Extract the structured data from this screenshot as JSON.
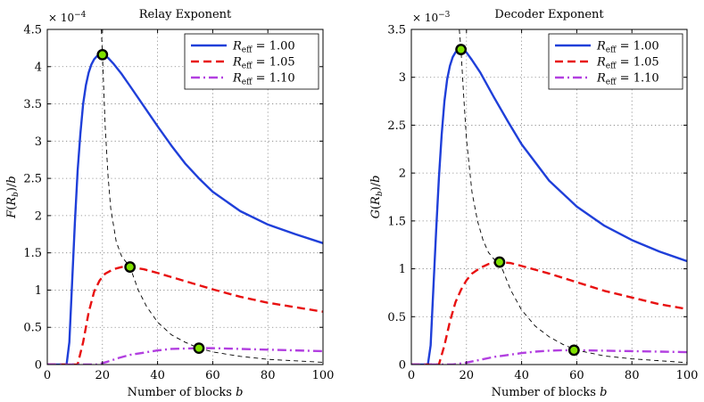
{
  "chart_data": [
    {
      "type": "line",
      "title": "Relay Exponent",
      "xlabel": "Number of blocks b",
      "ylabel": "F(R_b)/b",
      "xlim": [
        0,
        100
      ],
      "ylim": [
        0,
        4.5
      ],
      "y_multiplier": "x 10^-4",
      "xticks": [
        "0",
        "20",
        "40",
        "60",
        "80",
        "100"
      ],
      "yticks": [
        "0",
        "0.5",
        "1",
        "1.5",
        "2",
        "2.5",
        "3",
        "3.5",
        "4",
        "4.5"
      ],
      "grid": true,
      "legend_position": "top-right",
      "series": [
        {
          "name": "R_eff = 1.00",
          "color": "#1f3fd9",
          "style": "solid",
          "x": [
            0,
            7,
            8,
            9,
            10,
            11,
            12,
            13,
            14,
            15,
            16,
            17,
            18,
            19,
            20,
            22,
            24,
            27,
            30,
            35,
            40,
            45,
            50,
            55,
            60,
            70,
            80,
            90,
            100
          ],
          "y": [
            0,
            0,
            0.3,
            1.1,
            1.9,
            2.6,
            3.1,
            3.5,
            3.75,
            3.92,
            4.03,
            4.1,
            4.14,
            4.16,
            4.16,
            4.12,
            4.04,
            3.9,
            3.74,
            3.47,
            3.2,
            2.94,
            2.7,
            2.5,
            2.32,
            2.06,
            1.88,
            1.75,
            1.63
          ]
        },
        {
          "name": "R_eff = 1.05",
          "color": "#e81010",
          "style": "dashed",
          "x": [
            0,
            11,
            13,
            15,
            17,
            19,
            21,
            24,
            27,
            30,
            35,
            40,
            50,
            60,
            70,
            80,
            90,
            100
          ],
          "y": [
            0,
            0,
            0.3,
            0.7,
            0.98,
            1.13,
            1.22,
            1.28,
            1.31,
            1.31,
            1.28,
            1.23,
            1.12,
            1.01,
            0.91,
            0.83,
            0.77,
            0.71
          ]
        },
        {
          "name": "R_eff = 1.10",
          "color": "#b23fe0",
          "style": "dashdot",
          "x": [
            0,
            18,
            22,
            26,
            30,
            35,
            40,
            45,
            50,
            55,
            60,
            70,
            80,
            90,
            100
          ],
          "y": [
            0,
            0,
            0.04,
            0.09,
            0.13,
            0.16,
            0.19,
            0.21,
            0.215,
            0.22,
            0.22,
            0.21,
            0.2,
            0.19,
            0.18
          ]
        },
        {
          "name": "optimum envelope",
          "color": "#000000",
          "style": "thin-dashed",
          "legend": false,
          "x": [
            19.6,
            20,
            21,
            22,
            23,
            25,
            27,
            30,
            33,
            36,
            40,
            45,
            50,
            55,
            60,
            70,
            80,
            90,
            100
          ],
          "y": [
            4.5,
            4.16,
            3.2,
            2.55,
            2.1,
            1.65,
            1.45,
            1.31,
            1.0,
            0.78,
            0.57,
            0.4,
            0.3,
            0.22,
            0.17,
            0.11,
            0.07,
            0.05,
            0.03
          ]
        }
      ],
      "markers": [
        {
          "x": 20,
          "y": 4.16
        },
        {
          "x": 30,
          "y": 1.31
        },
        {
          "x": 55,
          "y": 0.22
        }
      ]
    },
    {
      "type": "line",
      "title": "Decoder Exponent",
      "xlabel": "Number of blocks b",
      "ylabel": "G(R_b)/b",
      "xlim": [
        0,
        100
      ],
      "ylim": [
        0,
        3.5
      ],
      "y_multiplier": "x 10^-3",
      "xticks": [
        "0",
        "20",
        "40",
        "60",
        "80",
        "100"
      ],
      "yticks": [
        "0",
        "0.5",
        "1",
        "1.5",
        "2",
        "2.5",
        "3",
        "3.5"
      ],
      "grid": true,
      "legend_position": "top-right",
      "series": [
        {
          "name": "R_eff = 1.00",
          "color": "#1f3fd9",
          "style": "solid",
          "x": [
            0,
            6,
            7,
            8,
            9,
            10,
            11,
            12,
            13,
            14,
            15,
            16,
            17,
            18,
            19,
            20,
            22,
            25,
            30,
            35,
            40,
            50,
            60,
            70,
            80,
            90,
            100
          ],
          "y": [
            0,
            0,
            0.2,
            0.8,
            1.4,
            1.95,
            2.4,
            2.75,
            2.98,
            3.12,
            3.21,
            3.26,
            3.28,
            3.29,
            3.28,
            3.26,
            3.18,
            3.05,
            2.79,
            2.54,
            2.3,
            1.92,
            1.65,
            1.45,
            1.3,
            1.18,
            1.08
          ]
        },
        {
          "name": "R_eff = 1.05",
          "color": "#e81010",
          "style": "dashed",
          "x": [
            0,
            10,
            12,
            14,
            16,
            18,
            20,
            22,
            25,
            28,
            32,
            36,
            40,
            50,
            60,
            70,
            80,
            90,
            100
          ],
          "y": [
            0,
            0,
            0.2,
            0.45,
            0.65,
            0.78,
            0.88,
            0.95,
            1.01,
            1.05,
            1.07,
            1.06,
            1.03,
            0.95,
            0.86,
            0.77,
            0.7,
            0.63,
            0.58
          ]
        },
        {
          "name": "R_eff = 1.10",
          "color": "#b23fe0",
          "style": "dashdot",
          "x": [
            0,
            15,
            20,
            25,
            30,
            35,
            40,
            45,
            50,
            55,
            60,
            70,
            80,
            90,
            100
          ],
          "y": [
            0,
            0,
            0.02,
            0.05,
            0.08,
            0.1,
            0.12,
            0.135,
            0.145,
            0.15,
            0.15,
            0.145,
            0.14,
            0.135,
            0.13
          ]
        },
        {
          "name": "optimum envelope",
          "color": "#000000",
          "style": "thin-dashed",
          "legend": false,
          "x": [
            17.4,
            18,
            19,
            20,
            22,
            24,
            26,
            28,
            30,
            32,
            36,
            40,
            45,
            50,
            55,
            60,
            70,
            80,
            90,
            100
          ],
          "y": [
            3.5,
            3.29,
            2.8,
            2.35,
            1.8,
            1.5,
            1.3,
            1.17,
            1.1,
            1.07,
            0.78,
            0.57,
            0.4,
            0.29,
            0.21,
            0.15,
            0.09,
            0.06,
            0.04,
            0.02
          ]
        }
      ],
      "markers": [
        {
          "x": 18,
          "y": 3.29
        },
        {
          "x": 32,
          "y": 1.07
        },
        {
          "x": 59,
          "y": 0.15
        }
      ]
    }
  ]
}
